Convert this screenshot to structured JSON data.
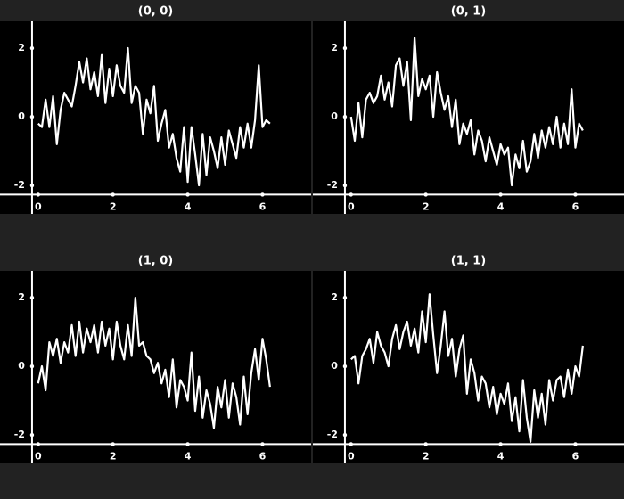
{
  "chart_data": [
    {
      "type": "line",
      "title": "(0, 0)",
      "color": "#ffffff",
      "x": [
        0,
        0.1,
        0.2,
        0.3,
        0.4,
        0.5,
        0.6,
        0.7,
        0.8,
        0.9,
        1,
        1.1,
        1.2,
        1.3,
        1.4,
        1.5,
        1.6,
        1.7,
        1.8,
        1.9,
        2,
        2.1,
        2.2,
        2.3,
        2.4,
        2.5,
        2.6,
        2.7,
        2.8,
        2.9,
        3,
        3.1,
        3.2,
        3.3,
        3.4,
        3.5,
        3.6,
        3.7,
        3.8,
        3.9,
        4,
        4.1,
        4.2,
        4.3,
        4.4,
        4.5,
        4.6,
        4.7,
        4.8,
        4.9,
        5,
        5.1,
        5.2,
        5.3,
        5.4,
        5.5,
        5.6,
        5.7,
        5.8,
        5.9,
        6,
        6.1,
        6.2
      ],
      "values": [
        -0.2,
        -0.3,
        0.5,
        -0.3,
        0.6,
        -0.8,
        0.2,
        0.7,
        0.5,
        0.3,
        0.9,
        1.6,
        1.0,
        1.7,
        0.8,
        1.3,
        0.6,
        1.8,
        0.4,
        1.4,
        0.6,
        1.5,
        0.9,
        0.7,
        2.0,
        0.4,
        0.9,
        0.7,
        -0.5,
        0.5,
        0.1,
        0.9,
        -0.7,
        -0.2,
        0.2,
        -0.9,
        -0.5,
        -1.2,
        -1.6,
        -0.3,
        -1.9,
        -0.3,
        -1.1,
        -2.0,
        -0.5,
        -1.7,
        -0.6,
        -1.0,
        -1.5,
        -0.6,
        -1.4,
        -0.4,
        -0.8,
        -1.2,
        -0.3,
        -0.9,
        -0.2,
        -0.9,
        -0.1,
        1.5,
        -0.3,
        -0.1,
        -0.2
      ],
      "xlim": [
        -1.02,
        7.3
      ],
      "ylim": [
        -2.83,
        2.78
      ],
      "xticks": [
        0,
        2,
        4,
        6
      ],
      "yticks": [
        -2,
        0,
        2
      ]
    },
    {
      "type": "line",
      "title": "(0, 1)",
      "color": "#ffffff",
      "x": [
        0,
        0.1,
        0.2,
        0.3,
        0.4,
        0.5,
        0.6,
        0.7,
        0.8,
        0.9,
        1,
        1.1,
        1.2,
        1.3,
        1.4,
        1.5,
        1.6,
        1.7,
        1.8,
        1.9,
        2,
        2.1,
        2.2,
        2.3,
        2.4,
        2.5,
        2.6,
        2.7,
        2.8,
        2.9,
        3,
        3.1,
        3.2,
        3.3,
        3.4,
        3.5,
        3.6,
        3.7,
        3.8,
        3.9,
        4,
        4.1,
        4.2,
        4.3,
        4.4,
        4.5,
        4.6,
        4.7,
        4.8,
        4.9,
        5,
        5.1,
        5.2,
        5.3,
        5.4,
        5.5,
        5.6,
        5.7,
        5.8,
        5.9,
        6,
        6.1,
        6.2
      ],
      "values": [
        0.0,
        -0.7,
        0.4,
        -0.6,
        0.5,
        0.7,
        0.4,
        0.6,
        1.2,
        0.5,
        1.0,
        0.3,
        1.5,
        1.7,
        0.9,
        1.6,
        -0.1,
        2.3,
        0.6,
        1.1,
        0.8,
        1.2,
        0.0,
        1.3,
        0.7,
        0.2,
        0.6,
        -0.3,
        0.5,
        -0.8,
        -0.2,
        -0.5,
        -0.1,
        -1.1,
        -0.4,
        -0.7,
        -1.3,
        -0.6,
        -1.0,
        -1.4,
        -0.8,
        -1.1,
        -0.9,
        -2.0,
        -1.1,
        -1.5,
        -0.7,
        -1.6,
        -1.3,
        -0.5,
        -1.2,
        -0.4,
        -0.9,
        -0.3,
        -0.8,
        0.0,
        -0.9,
        -0.2,
        -0.8,
        0.8,
        -0.9,
        -0.2,
        -0.4
      ],
      "xlim": [
        -1.02,
        7.3
      ],
      "ylim": [
        -2.83,
        2.78
      ],
      "xticks": [
        0,
        2,
        4,
        6
      ],
      "yticks": [
        -2,
        0,
        2
      ]
    },
    {
      "type": "line",
      "title": "(1, 0)",
      "color": "#ffffff",
      "x": [
        0,
        0.1,
        0.2,
        0.3,
        0.4,
        0.5,
        0.6,
        0.7,
        0.8,
        0.9,
        1,
        1.1,
        1.2,
        1.3,
        1.4,
        1.5,
        1.6,
        1.7,
        1.8,
        1.9,
        2,
        2.1,
        2.2,
        2.3,
        2.4,
        2.5,
        2.6,
        2.7,
        2.8,
        2.9,
        3,
        3.1,
        3.2,
        3.3,
        3.4,
        3.5,
        3.6,
        3.7,
        3.8,
        3.9,
        4,
        4.1,
        4.2,
        4.3,
        4.4,
        4.5,
        4.6,
        4.7,
        4.8,
        4.9,
        5,
        5.1,
        5.2,
        5.3,
        5.4,
        5.5,
        5.6,
        5.7,
        5.8,
        5.9,
        6,
        6.1,
        6.2
      ],
      "values": [
        -0.5,
        0.0,
        -0.7,
        0.7,
        0.3,
        0.8,
        0.1,
        0.7,
        0.4,
        1.2,
        0.3,
        1.3,
        0.4,
        1.1,
        0.7,
        1.2,
        0.4,
        1.3,
        0.6,
        1.1,
        0.2,
        1.3,
        0.6,
        0.2,
        1.2,
        0.3,
        2.0,
        0.6,
        0.7,
        0.3,
        0.2,
        -0.2,
        0.1,
        -0.5,
        -0.1,
        -0.9,
        0.2,
        -1.2,
        -0.4,
        -0.6,
        -1.0,
        0.4,
        -1.3,
        -0.3,
        -1.5,
        -0.7,
        -1.1,
        -1.8,
        -0.6,
        -1.2,
        -0.4,
        -1.5,
        -0.5,
        -0.9,
        -1.7,
        -0.3,
        -1.4,
        -0.2,
        0.5,
        -0.4,
        0.8,
        0.2,
        -0.6
      ],
      "xlim": [
        -1.02,
        7.3
      ],
      "ylim": [
        -2.83,
        2.78
      ],
      "xticks": [
        0,
        2,
        4,
        6
      ],
      "yticks": [
        -2,
        0,
        2
      ]
    },
    {
      "type": "line",
      "title": "(1, 1)",
      "color": "#ffffff",
      "x": [
        0,
        0.1,
        0.2,
        0.3,
        0.4,
        0.5,
        0.6,
        0.7,
        0.8,
        0.9,
        1,
        1.1,
        1.2,
        1.3,
        1.4,
        1.5,
        1.6,
        1.7,
        1.8,
        1.9,
        2,
        2.1,
        2.2,
        2.3,
        2.4,
        2.5,
        2.6,
        2.7,
        2.8,
        2.9,
        3,
        3.1,
        3.2,
        3.3,
        3.4,
        3.5,
        3.6,
        3.7,
        3.8,
        3.9,
        4,
        4.1,
        4.2,
        4.3,
        4.4,
        4.5,
        4.6,
        4.7,
        4.8,
        4.9,
        5,
        5.1,
        5.2,
        5.3,
        5.4,
        5.5,
        5.6,
        5.7,
        5.8,
        5.9,
        6,
        6.1,
        6.2
      ],
      "values": [
        0.2,
        0.3,
        -0.5,
        0.3,
        0.5,
        0.8,
        0.1,
        1.0,
        0.6,
        0.4,
        0.0,
        0.8,
        1.2,
        0.5,
        1.0,
        1.3,
        0.6,
        1.1,
        0.4,
        1.6,
        0.7,
        2.1,
        0.9,
        -0.2,
        0.6,
        1.6,
        0.3,
        0.8,
        -0.3,
        0.5,
        0.9,
        -0.8,
        0.2,
        -0.2,
        -1.0,
        -0.3,
        -0.5,
        -1.2,
        -0.6,
        -1.4,
        -0.8,
        -1.1,
        -0.5,
        -1.6,
        -0.9,
        -1.9,
        -0.4,
        -1.5,
        -2.2,
        -0.7,
        -1.5,
        -0.8,
        -1.7,
        -0.4,
        -1.0,
        -0.4,
        -0.3,
        -0.9,
        -0.1,
        -0.8,
        0.0,
        -0.3,
        0.6
      ],
      "xlim": [
        -1.02,
        7.3
      ],
      "ylim": [
        -2.83,
        2.78
      ],
      "xticks": [
        0,
        2,
        4,
        6
      ],
      "yticks": [
        -2,
        0,
        2
      ]
    }
  ]
}
